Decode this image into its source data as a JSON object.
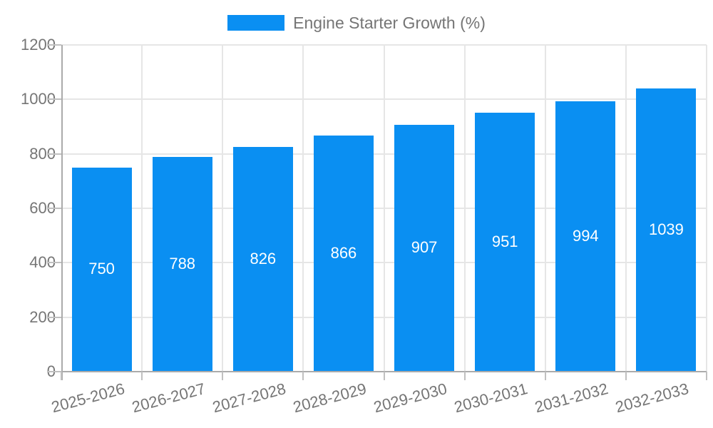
{
  "legend": {
    "label": "Engine Starter Growth (%)"
  },
  "colors": {
    "bar": "#0a8ff2",
    "value_label": "#ffffff",
    "axis_text": "#757575",
    "gridline": "#e6e6e6",
    "axis_line": "#ababab",
    "tick": "#c0c0c0",
    "background": "#ffffff"
  },
  "chart_data": {
    "type": "bar",
    "title": "Engine Starter Growth (%)",
    "categories": [
      "2025-2026",
      "2026-2027",
      "2027-2028",
      "2028-2029",
      "2029-2030",
      "2030-2031",
      "2031-2032",
      "2032-2033"
    ],
    "values": [
      750,
      788,
      826,
      866,
      907,
      951,
      994,
      1039
    ],
    "xlabel": "",
    "ylabel": "",
    "ylim": [
      0,
      1200
    ],
    "yticks": [
      0,
      200,
      400,
      600,
      800,
      1000,
      1200
    ],
    "grid": true,
    "legend_position": "top",
    "value_labels": "inside-center",
    "x_label_rotation_deg": -15
  }
}
